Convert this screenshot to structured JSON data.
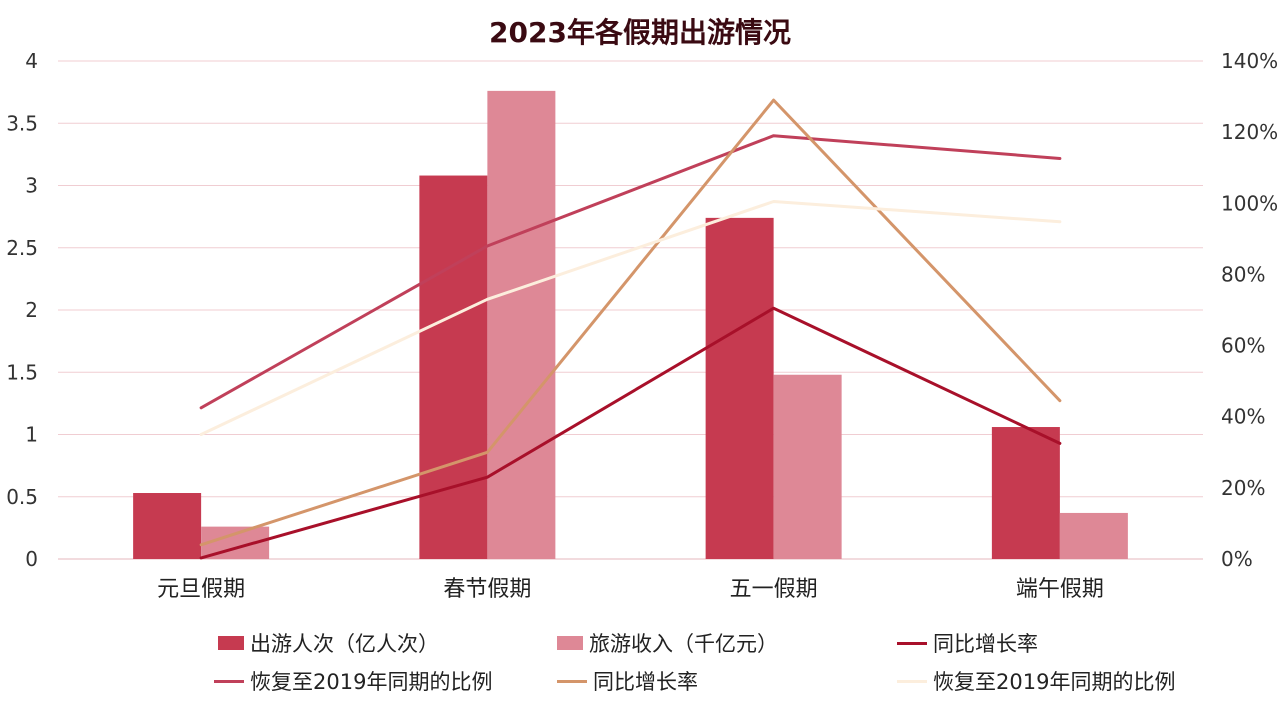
{
  "chart_data": {
    "type": "bar",
    "title": "2023年各假期出游情况",
    "categories": [
      "元旦假期",
      "春节假期",
      "五一假期",
      "端午假期"
    ],
    "y_left": {
      "ylim": [
        0,
        4
      ],
      "ticks": [
        "0",
        "0.5",
        "1",
        "1.5",
        "2",
        "2.5",
        "3",
        "3.5",
        "4"
      ]
    },
    "y_right": {
      "ylim": [
        0,
        1.4
      ],
      "ticks": [
        "0%",
        "20%",
        "40%",
        "60%",
        "80%",
        "100%",
        "120%",
        "140%"
      ]
    },
    "grid": true,
    "legend_position": "bottom",
    "bars": [
      {
        "name": "出游人次（亿人次）",
        "color": "#C63A50",
        "values": [
          0.53,
          3.08,
          2.74,
          1.06
        ]
      },
      {
        "name": "旅游收入（千亿元）",
        "color": "#DE8896",
        "values": [
          0.26,
          3.76,
          1.48,
          0.37
        ]
      }
    ],
    "lines": [
      {
        "name": "同比增长率",
        "color": "#A8102A",
        "axis": "right",
        "values": [
          0.003,
          0.23,
          0.705,
          0.325
        ]
      },
      {
        "name": "恢复至2019年同期的比例",
        "color": "#C0405A",
        "axis": "right",
        "values": [
          0.425,
          0.88,
          1.19,
          1.126
        ]
      },
      {
        "name": "同比增长率",
        "color": "#D4956A",
        "axis": "right",
        "values": [
          0.04,
          0.3,
          1.29,
          0.445
        ]
      },
      {
        "name": "恢复至2019年同期的比例",
        "color": "#FCEEDD",
        "axis": "right",
        "values": [
          0.35,
          0.73,
          1.005,
          0.948
        ]
      }
    ]
  }
}
